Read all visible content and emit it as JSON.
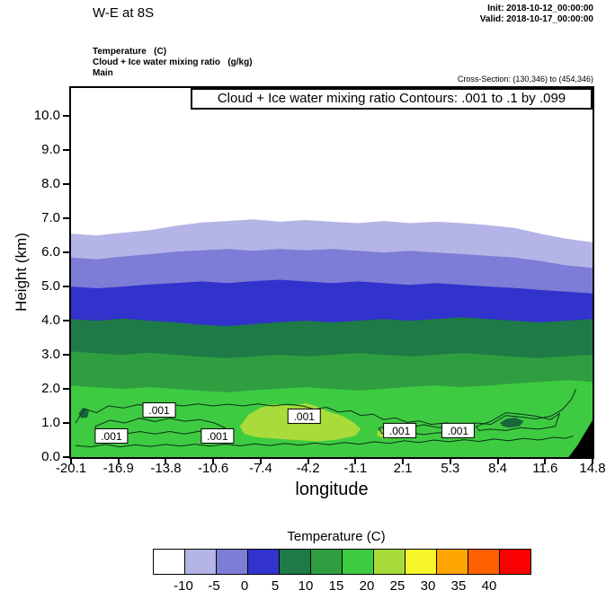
{
  "header": {
    "title": "W-E at 8S",
    "init": "Init: 2018-10-12_00:00:00",
    "valid": "Valid: 2018-10-17_00:00:00",
    "field_lines": [
      "Temperature   (C)",
      "Cloud + Ice water mixing ratio   (g/kg)",
      "Main"
    ],
    "cross_section": "Cross-Section: (130,346) to (454,346)"
  },
  "chart_data": {
    "type": "heatmap",
    "subtype": "filled_contour_vertical_cross_section",
    "title": "Cloud + Ice water mixing ratio Contours: .001 to .1 by .099",
    "xlabel": "longitude",
    "ylabel": "Height (km)",
    "xlim": [
      -20.1,
      14.8
    ],
    "ylim": [
      0,
      10.82
    ],
    "grid": false,
    "background_color": "#ffffff",
    "x_tick_labels": [
      "-20.1",
      "-16.9",
      "-13.8",
      "-10.6",
      "-7.4",
      "-4.2",
      "-1.1",
      "2.1",
      "5.3",
      "8.4",
      "11.6",
      "14.8"
    ],
    "y_tick_labels": [
      "0.0",
      "1.0",
      "2.0",
      "3.0",
      "4.0",
      "5.0",
      "6.0",
      "7.0",
      "8.0",
      "9.0",
      "10.0"
    ],
    "temperature_bands": [
      {
        "range_c": "below -10",
        "color": "#ffffff"
      },
      {
        "range_c": "-10 to -5",
        "color": "#b4b4e6",
        "top_heights_km": [
          6.55,
          6.5,
          6.58,
          6.65,
          6.78,
          6.88,
          6.92,
          6.97,
          6.9,
          6.95,
          6.9,
          6.86,
          6.92,
          6.86,
          6.9,
          6.86,
          6.8,
          6.72,
          6.55,
          6.4,
          6.3
        ]
      },
      {
        "range_c": "-5 to 0",
        "color": "#7d7dd7",
        "top_heights_km": [
          5.85,
          5.8,
          5.88,
          5.95,
          6.02,
          6.06,
          6.1,
          6.05,
          6.1,
          6.06,
          6.1,
          6.05,
          6.0,
          6.05,
          6.0,
          5.95,
          5.9,
          5.85,
          5.75,
          5.62,
          5.55
        ]
      },
      {
        "range_c": "0 to 5",
        "color": "#3232cd",
        "top_heights_km": [
          5.0,
          4.95,
          5.0,
          5.06,
          5.1,
          5.15,
          5.1,
          5.16,
          5.2,
          5.15,
          5.1,
          5.15,
          5.1,
          5.05,
          5.1,
          5.05,
          5.0,
          4.96,
          4.9,
          4.85,
          4.8
        ]
      },
      {
        "range_c": "5 to 10",
        "color": "#1e7a46",
        "top_heights_km": [
          4.05,
          4.0,
          4.06,
          4.0,
          3.95,
          3.88,
          3.84,
          3.9,
          3.96,
          4.0,
          3.95,
          4.0,
          4.05,
          4.0,
          4.05,
          4.1,
          4.05,
          4.0,
          3.95,
          4.0,
          4.05
        ]
      },
      {
        "range_c": "10 to 15",
        "color": "#2f9e40",
        "top_heights_km": [
          3.1,
          3.04,
          3.0,
          3.06,
          3.0,
          2.94,
          2.9,
          2.95,
          3.0,
          2.95,
          3.0,
          3.05,
          3.0,
          2.95,
          3.0,
          3.05,
          3.0,
          2.94,
          2.9,
          2.96,
          3.0
        ]
      },
      {
        "range_c": "15 to 20",
        "color": "#3ecb41",
        "top_heights_km": [
          2.1,
          2.04,
          2.0,
          2.05,
          2.0,
          1.94,
          1.9,
          1.96,
          2.0,
          2.05,
          2.0,
          1.95,
          2.0,
          2.06,
          2.1,
          2.05,
          2.1,
          2.16,
          2.2,
          2.26,
          2.2
        ]
      }
    ],
    "warm_patches": [
      {
        "range_c": "20 to 25",
        "color": "#a9dc3a",
        "points_lon_km": [
          [
            -8.8,
            0.9
          ],
          [
            -8.2,
            1.25
          ],
          [
            -7.4,
            1.45
          ],
          [
            -6.4,
            1.55
          ],
          [
            -5.4,
            1.5
          ],
          [
            -4.4,
            1.58
          ],
          [
            -3.6,
            1.48
          ],
          [
            -2.8,
            1.32
          ],
          [
            -2.0,
            1.22
          ],
          [
            -1.2,
            1.02
          ],
          [
            -0.7,
            0.82
          ],
          [
            -1.1,
            0.62
          ],
          [
            -2.2,
            0.52
          ],
          [
            -3.6,
            0.46
          ],
          [
            -5.0,
            0.5
          ],
          [
            -6.4,
            0.54
          ],
          [
            -7.6,
            0.58
          ],
          [
            -8.5,
            0.68
          ]
        ]
      },
      {
        "range_c": "20 to 25",
        "color": "#a9dc3a",
        "points_lon_km": [
          [
            0.4,
            0.76
          ],
          [
            1.3,
            0.84
          ],
          [
            2.2,
            0.72
          ],
          [
            1.8,
            0.56
          ],
          [
            0.9,
            0.54
          ],
          [
            0.4,
            0.62
          ]
        ]
      }
    ],
    "dense_cloud_patches": [
      {
        "color": "#19663c",
        "points_lon_km": [
          [
            8.6,
            1.0
          ],
          [
            9.0,
            1.12
          ],
          [
            9.6,
            1.16
          ],
          [
            10.2,
            1.06
          ],
          [
            9.9,
            0.9
          ],
          [
            9.2,
            0.86
          ],
          [
            8.8,
            0.9
          ]
        ]
      },
      {
        "color": "#19663c",
        "points_lon_km": [
          [
            -19.6,
            1.28
          ],
          [
            -19.3,
            1.45
          ],
          [
            -18.9,
            1.34
          ],
          [
            -19.0,
            1.16
          ],
          [
            -19.4,
            1.14
          ]
        ]
      }
    ],
    "cloud_contours": {
      "levels": [
        0.001,
        0.1
      ],
      "color": "#0c3018",
      "lines": [
        [
          [
            -19.8,
            1.0
          ],
          [
            -19.2,
            1.42
          ],
          [
            -18.4,
            1.3
          ],
          [
            -17.6,
            1.5
          ],
          [
            -16.6,
            1.44
          ],
          [
            -15.6,
            1.54
          ],
          [
            -14.6,
            1.46
          ],
          [
            -13.6,
            1.55
          ],
          [
            -12.6,
            1.5
          ],
          [
            -11.6,
            1.56
          ],
          [
            -10.6,
            1.5
          ],
          [
            -9.6,
            1.55
          ],
          [
            -8.6,
            1.5
          ],
          [
            -7.6,
            1.56
          ],
          [
            -6.6,
            1.5
          ],
          [
            -5.6,
            1.55
          ],
          [
            -4.6,
            1.5
          ],
          [
            -3.8,
            1.4
          ],
          [
            -3.0,
            1.46
          ],
          [
            -2.2,
            1.32
          ],
          [
            -1.4,
            1.36
          ],
          [
            -0.7,
            1.22
          ],
          [
            0.1,
            1.26
          ],
          [
            0.8,
            1.1
          ],
          [
            1.6,
            1.15
          ],
          [
            2.4,
            1.02
          ],
          [
            3.2,
            1.06
          ],
          [
            4.0,
            0.96
          ],
          [
            5.0,
            1.0
          ],
          [
            6.0,
            0.95
          ],
          [
            7.0,
            1.0
          ],
          [
            8.0,
            0.96
          ],
          [
            9.0,
            1.22
          ],
          [
            10.0,
            1.18
          ],
          [
            11.0,
            1.12
          ],
          [
            12.0,
            1.2
          ],
          [
            12.8,
            1.4
          ],
          [
            13.4,
            1.7
          ],
          [
            13.7,
            2.0
          ]
        ],
        [
          [
            -19.8,
            0.34
          ],
          [
            -18.8,
            0.3
          ],
          [
            -17.8,
            0.37
          ],
          [
            -16.8,
            0.3
          ],
          [
            -15.8,
            0.36
          ],
          [
            -14.8,
            0.31
          ],
          [
            -13.8,
            0.37
          ],
          [
            -12.8,
            0.32
          ],
          [
            -11.8,
            0.38
          ],
          [
            -10.8,
            0.32
          ],
          [
            -9.8,
            0.38
          ],
          [
            -8.8,
            0.33
          ],
          [
            -7.8,
            0.39
          ],
          [
            -6.8,
            0.34
          ],
          [
            -5.8,
            0.4
          ],
          [
            -4.8,
            0.35
          ],
          [
            -3.8,
            0.41
          ],
          [
            -2.8,
            0.36
          ],
          [
            -1.8,
            0.43
          ],
          [
            -0.8,
            0.38
          ],
          [
            0.2,
            0.45
          ],
          [
            1.2,
            0.4
          ],
          [
            2.2,
            0.48
          ],
          [
            3.2,
            0.43
          ],
          [
            4.2,
            0.5
          ],
          [
            5.2,
            0.45
          ],
          [
            6.2,
            0.51
          ],
          [
            7.2,
            0.46
          ],
          [
            8.2,
            0.53
          ],
          [
            9.2,
            0.48
          ],
          [
            10.2,
            0.55
          ],
          [
            11.2,
            0.5
          ],
          [
            12.2,
            0.58
          ],
          [
            13.0,
            0.55
          ],
          [
            13.5,
            0.62
          ]
        ],
        [
          [
            -18.5,
            0.9
          ],
          [
            -17.5,
            1.08
          ],
          [
            -16.5,
            1.0
          ],
          [
            -15.5,
            1.14
          ],
          [
            -14.5,
            1.04
          ],
          [
            -13.5,
            1.14
          ],
          [
            -12.5,
            1.05
          ],
          [
            -11.5,
            1.1
          ],
          [
            -10.5,
            1.0
          ],
          [
            -9.8,
            0.86
          ],
          [
            -10.4,
            0.72
          ],
          [
            -11.5,
            0.76
          ],
          [
            -12.5,
            0.68
          ],
          [
            -13.5,
            0.75
          ],
          [
            -14.5,
            0.68
          ],
          [
            -15.5,
            0.75
          ],
          [
            -16.5,
            0.68
          ],
          [
            -17.5,
            0.74
          ],
          [
            -18.3,
            0.72
          ],
          [
            -18.5,
            0.9
          ]
        ],
        [
          [
            0.5,
            0.85
          ],
          [
            1.5,
            0.95
          ],
          [
            2.5,
            0.86
          ],
          [
            3.5,
            0.95
          ],
          [
            4.5,
            0.86
          ],
          [
            5.5,
            0.92
          ],
          [
            6.3,
            0.8
          ],
          [
            5.5,
            0.68
          ],
          [
            4.5,
            0.72
          ],
          [
            3.5,
            0.66
          ],
          [
            2.5,
            0.72
          ],
          [
            1.5,
            0.66
          ],
          [
            0.7,
            0.7
          ],
          [
            0.5,
            0.85
          ]
        ],
        [
          [
            7.0,
            0.9
          ],
          [
            8.0,
            1.05
          ],
          [
            9.0,
            1.3
          ],
          [
            10.0,
            1.26
          ],
          [
            11.0,
            1.2
          ],
          [
            12.0,
            1.1
          ],
          [
            12.6,
            1.28
          ],
          [
            12.3,
            0.9
          ],
          [
            11.2,
            0.82
          ],
          [
            10.0,
            0.86
          ],
          [
            9.0,
            0.78
          ],
          [
            8.0,
            0.82
          ],
          [
            7.2,
            0.78
          ],
          [
            7.0,
            0.9
          ]
        ]
      ]
    },
    "contour_labels": [
      {
        "text": ".001",
        "lon": -17.4,
        "km": 0.62
      },
      {
        "text": ".001",
        "lon": -14.2,
        "km": 1.38
      },
      {
        "text": ".001",
        "lon": -10.3,
        "km": 0.62
      },
      {
        "text": ".001",
        "lon": -4.5,
        "km": 1.2
      },
      {
        "text": ".001",
        "lon": 1.9,
        "km": 0.78
      },
      {
        "text": ".001",
        "lon": 5.8,
        "km": 0.78
      }
    ],
    "terrain": {
      "color": "#000000",
      "points_lon_km": [
        [
          13.2,
          0
        ],
        [
          13.8,
          0.35
        ],
        [
          14.3,
          0.72
        ],
        [
          14.8,
          1.08
        ],
        [
          14.8,
          0
        ]
      ]
    },
    "colorbar": {
      "title": "Temperature  (C)",
      "cell_colors": [
        "#ffffff",
        "#b4b4e6",
        "#7d7dd7",
        "#3232cd",
        "#1e7a46",
        "#2f9e40",
        "#3ecb41",
        "#a9dc3a",
        "#f5f52a",
        "#ffa500",
        "#ff6000",
        "#fa0000"
      ],
      "tick_labels": [
        "-10",
        "-5",
        "0",
        "5",
        "10",
        "15",
        "20",
        "25",
        "30",
        "35",
        "40"
      ]
    }
  }
}
